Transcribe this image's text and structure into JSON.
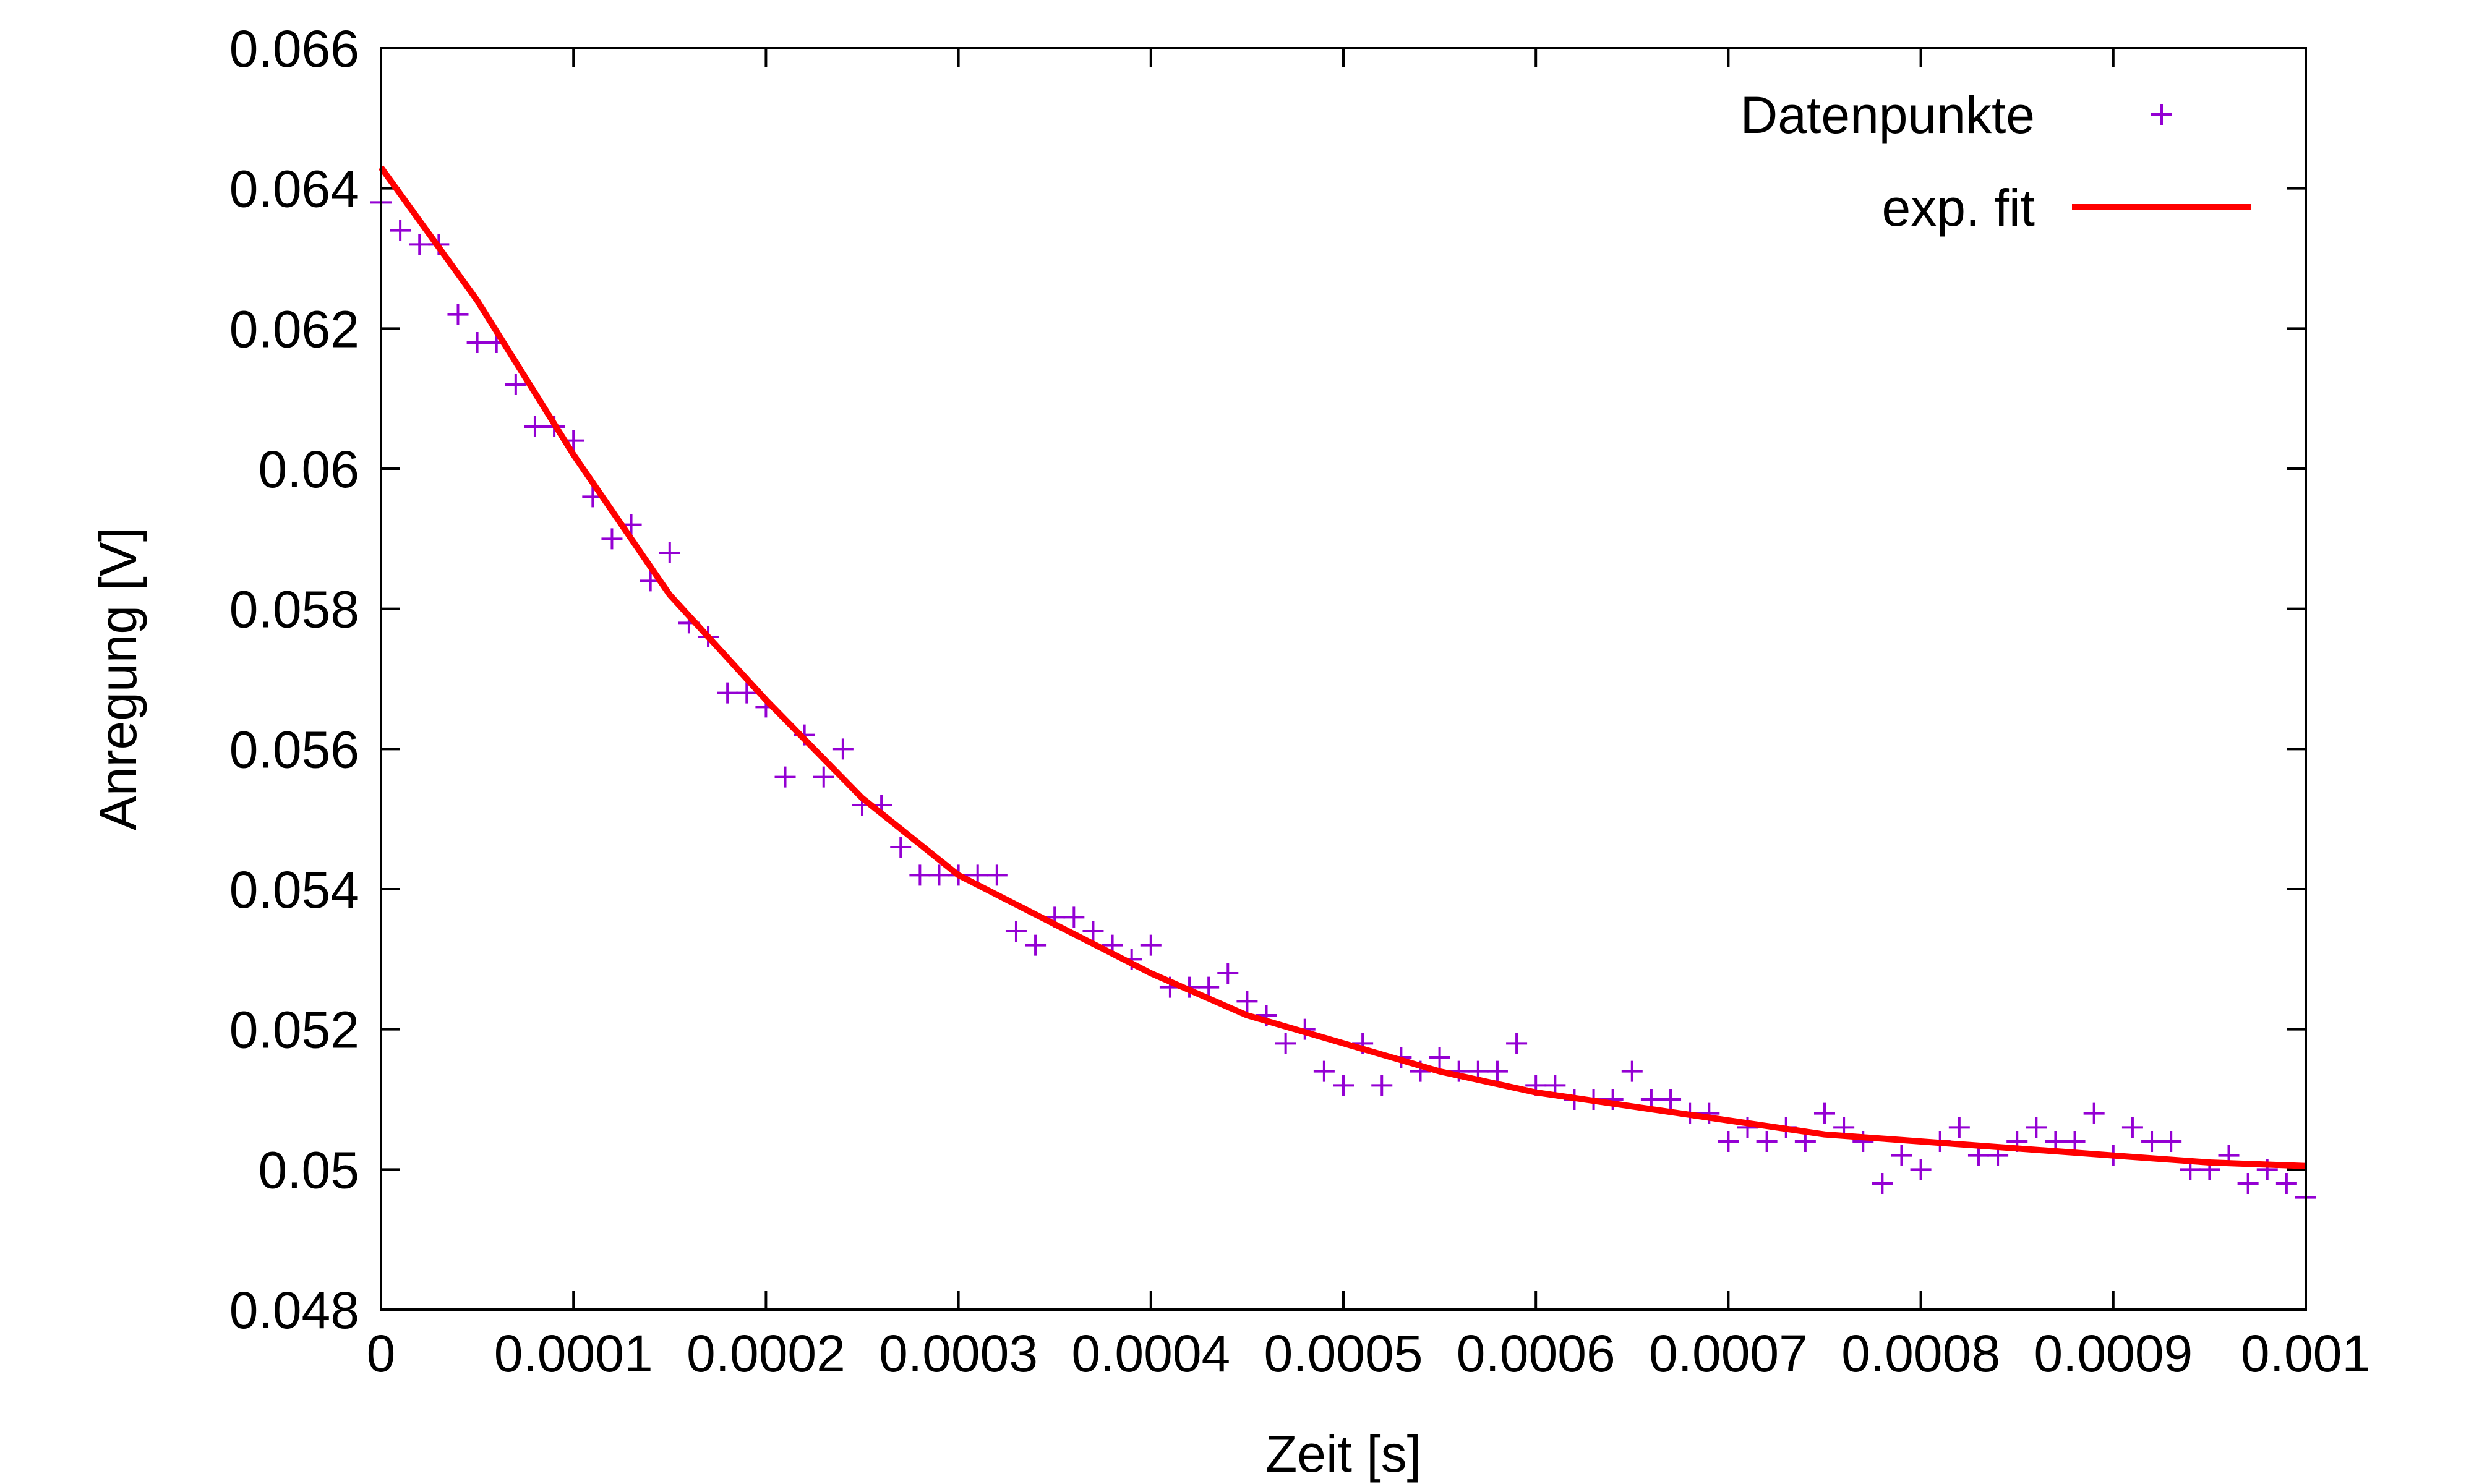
{
  "chart_data": {
    "type": "scatter",
    "xlabel": "Zeit [s]",
    "ylabel": "Anregung [V]",
    "xlim": [
      0,
      0.001
    ],
    "ylim": [
      0.048,
      0.066
    ],
    "grid": false,
    "legend_position": "top-right",
    "x_ticks": [
      "0",
      "0.0001",
      "0.0002",
      "0.0003",
      "0.0004",
      "0.0005",
      "0.0006",
      "0.0007",
      "0.0008",
      "0.0009",
      "0.001"
    ],
    "y_ticks": [
      "0.048",
      "0.05",
      "0.052",
      "0.054",
      "0.056",
      "0.058",
      "0.06",
      "0.062",
      "0.064",
      "0.066"
    ],
    "series": [
      {
        "name": "Datenpunkte",
        "kind": "points",
        "marker": "plus",
        "color": "#9400D3",
        "points": [
          [
            0.0,
            0.0638
          ],
          [
            1e-05,
            0.0634
          ],
          [
            2e-05,
            0.0632
          ],
          [
            3e-05,
            0.0632
          ],
          [
            4e-05,
            0.0622
          ],
          [
            5e-05,
            0.0618
          ],
          [
            6e-05,
            0.0618
          ],
          [
            7e-05,
            0.0612
          ],
          [
            8e-05,
            0.0606
          ],
          [
            9e-05,
            0.0606
          ],
          [
            0.0001,
            0.0604
          ],
          [
            0.00011,
            0.0596
          ],
          [
            0.00012,
            0.059
          ],
          [
            0.00013,
            0.0592
          ],
          [
            0.00014,
            0.0584
          ],
          [
            0.00015,
            0.0588
          ],
          [
            0.00016,
            0.0578
          ],
          [
            0.00017,
            0.0576
          ],
          [
            0.00018,
            0.0568
          ],
          [
            0.00019,
            0.0568
          ],
          [
            0.0002,
            0.0566
          ],
          [
            0.00021,
            0.0556
          ],
          [
            0.00022,
            0.0562
          ],
          [
            0.00023,
            0.0556
          ],
          [
            0.00024,
            0.056
          ],
          [
            0.00025,
            0.0552
          ],
          [
            0.00026,
            0.0552
          ],
          [
            0.00027,
            0.0546
          ],
          [
            0.00028,
            0.0542
          ],
          [
            0.00029,
            0.0542
          ],
          [
            0.0003,
            0.0542
          ],
          [
            0.00031,
            0.0542
          ],
          [
            0.00032,
            0.0542
          ],
          [
            0.00033,
            0.0534
          ],
          [
            0.00034,
            0.0532
          ],
          [
            0.00035,
            0.0536
          ],
          [
            0.00036,
            0.0536
          ],
          [
            0.00037,
            0.0534
          ],
          [
            0.00038,
            0.0532
          ],
          [
            0.00039,
            0.053
          ],
          [
            0.0004,
            0.0532
          ],
          [
            0.00041,
            0.0526
          ],
          [
            0.00042,
            0.0526
          ],
          [
            0.00043,
            0.0526
          ],
          [
            0.00044,
            0.0528
          ],
          [
            0.00045,
            0.0524
          ],
          [
            0.00046,
            0.0522
          ],
          [
            0.00047,
            0.0518
          ],
          [
            0.00048,
            0.052
          ],
          [
            0.00049,
            0.0514
          ],
          [
            0.0005,
            0.0512
          ],
          [
            0.00051,
            0.0518
          ],
          [
            0.00052,
            0.0512
          ],
          [
            0.00053,
            0.0516
          ],
          [
            0.00054,
            0.0514
          ],
          [
            0.00055,
            0.0516
          ],
          [
            0.00056,
            0.0514
          ],
          [
            0.00057,
            0.0514
          ],
          [
            0.00058,
            0.0514
          ],
          [
            0.00059,
            0.0518
          ],
          [
            0.0006,
            0.0512
          ],
          [
            0.00061,
            0.0512
          ],
          [
            0.00062,
            0.051
          ],
          [
            0.00063,
            0.051
          ],
          [
            0.00064,
            0.051
          ],
          [
            0.00065,
            0.0514
          ],
          [
            0.00066,
            0.051
          ],
          [
            0.00067,
            0.051
          ],
          [
            0.00068,
            0.0508
          ],
          [
            0.00069,
            0.0508
          ],
          [
            0.0007,
            0.0504
          ],
          [
            0.00071,
            0.0506
          ],
          [
            0.00072,
            0.0504
          ],
          [
            0.00073,
            0.0506
          ],
          [
            0.00074,
            0.0504
          ],
          [
            0.00075,
            0.0508
          ],
          [
            0.00076,
            0.0506
          ],
          [
            0.00077,
            0.0504
          ],
          [
            0.00078,
            0.0498
          ],
          [
            0.00079,
            0.0502
          ],
          [
            0.0008,
            0.05
          ],
          [
            0.00081,
            0.0504
          ],
          [
            0.00082,
            0.0506
          ],
          [
            0.00083,
            0.0502
          ],
          [
            0.00084,
            0.0502
          ],
          [
            0.00085,
            0.0504
          ],
          [
            0.00086,
            0.0506
          ],
          [
            0.00087,
            0.0504
          ],
          [
            0.00088,
            0.0504
          ],
          [
            0.00089,
            0.0508
          ],
          [
            0.0009,
            0.0502
          ],
          [
            0.00091,
            0.0506
          ],
          [
            0.00092,
            0.0504
          ],
          [
            0.00093,
            0.0504
          ],
          [
            0.00094,
            0.05
          ],
          [
            0.00095,
            0.05
          ],
          [
            0.00096,
            0.0502
          ],
          [
            0.00097,
            0.0498
          ],
          [
            0.00098,
            0.05
          ],
          [
            0.00099,
            0.0498
          ],
          [
            0.001,
            0.0496
          ]
        ]
      },
      {
        "name": "exp. fit",
        "kind": "line",
        "color": "#FF0000",
        "points": [
          [
            0.0,
            0.0643
          ],
          [
            5e-05,
            0.0624
          ],
          [
            0.0001,
            0.0602
          ],
          [
            0.00015,
            0.0582
          ],
          [
            0.0002,
            0.0567
          ],
          [
            0.00025,
            0.0553
          ],
          [
            0.0003,
            0.0542
          ],
          [
            0.00035,
            0.0535
          ],
          [
            0.0004,
            0.0528
          ],
          [
            0.00045,
            0.0522
          ],
          [
            0.0005,
            0.0518
          ],
          [
            0.00055,
            0.0514
          ],
          [
            0.0006,
            0.0511
          ],
          [
            0.00065,
            0.0509
          ],
          [
            0.0007,
            0.0507
          ],
          [
            0.00075,
            0.0505
          ],
          [
            0.0008,
            0.0504
          ],
          [
            0.00085,
            0.0503
          ],
          [
            0.0009,
            0.0502
          ],
          [
            0.00095,
            0.0501
          ],
          [
            0.001,
            0.05005
          ]
        ]
      }
    ]
  }
}
